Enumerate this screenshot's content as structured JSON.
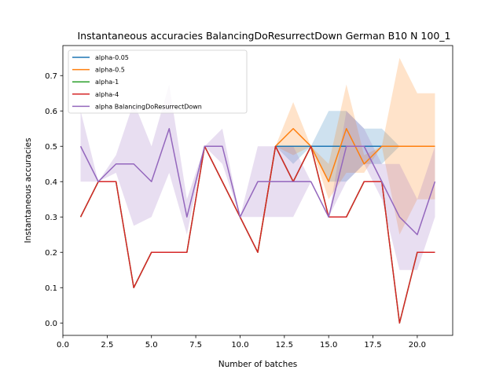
{
  "chart_data": {
    "type": "line",
    "title": "Instantaneous accuracies BalancingDoResurrectDown German B10 N 100_1",
    "xlabel": "Number of batches",
    "ylabel": "Instantaneous accuracies",
    "xlim": [
      0.0,
      22.0
    ],
    "ylim": [
      -0.035,
      0.785
    ],
    "xticks": [
      0.0,
      2.5,
      5.0,
      7.5,
      10.0,
      12.5,
      15.0,
      17.5,
      20.0
    ],
    "xtick_labels": [
      "0.0",
      "2.5",
      "5.0",
      "7.5",
      "10.0",
      "12.5",
      "15.0",
      "17.5",
      "20.0"
    ],
    "yticks": [
      0.0,
      0.1,
      0.2,
      0.3,
      0.4,
      0.5,
      0.6,
      0.7
    ],
    "ytick_labels": [
      "0.0",
      "0.1",
      "0.2",
      "0.3",
      "0.4",
      "0.5",
      "0.6",
      "0.7"
    ],
    "grid": false,
    "legend_position": "top-left",
    "series": [
      {
        "name": "alpha-0.05",
        "color": "#1f77b4",
        "x": [
          12,
          13,
          14,
          15,
          16,
          17,
          18,
          19,
          20,
          21
        ],
        "values": [
          0.5,
          0.5,
          0.5,
          0.5,
          0.5,
          0.5,
          0.5,
          0.5,
          0.5,
          0.5
        ],
        "band_upper": [
          0.5,
          0.5,
          0.5,
          0.6,
          0.6,
          0.55,
          0.55,
          0.5,
          0.5,
          0.5
        ],
        "band_lower": [
          0.5,
          0.45,
          0.5,
          0.4,
          0.4,
          0.45,
          0.45,
          0.5,
          0.5,
          0.5
        ]
      },
      {
        "name": "alpha-0.5",
        "color": "#ff7f0e",
        "x": [
          11,
          12,
          13,
          14,
          15,
          16,
          17,
          18,
          19,
          20,
          21
        ],
        "values": [
          0.2,
          0.5,
          0.55,
          0.5,
          0.4,
          0.55,
          0.45,
          0.5,
          0.5,
          0.5,
          0.5
        ],
        "band_upper": [
          0.2,
          0.5,
          0.625,
          0.5,
          0.45,
          0.675,
          0.475,
          0.5,
          0.75,
          0.65,
          0.65
        ],
        "band_lower": [
          0.2,
          0.5,
          0.475,
          0.5,
          0.35,
          0.425,
          0.425,
          0.5,
          0.25,
          0.35,
          0.35
        ]
      },
      {
        "name": "alpha-1",
        "color": "#2ca02c",
        "x": [
          1,
          2,
          3,
          4,
          5,
          6,
          7,
          8,
          9,
          10,
          11,
          12,
          13,
          14,
          15,
          16,
          17,
          18,
          19,
          20,
          21
        ],
        "values": [
          0.3,
          0.4,
          0.4,
          0.1,
          0.2,
          0.2,
          0.2,
          0.5,
          0.4,
          0.3,
          0.2,
          0.5,
          0.4,
          0.5,
          0.3,
          0.3,
          0.4,
          0.4,
          0.0,
          0.2,
          0.2
        ]
      },
      {
        "name": "alpha-4",
        "color": "#d62728",
        "x": [
          1,
          2,
          3,
          4,
          5,
          6,
          7,
          8,
          9,
          10,
          11,
          12,
          13,
          14,
          15,
          16,
          17,
          18,
          19,
          20,
          21
        ],
        "values": [
          0.3,
          0.4,
          0.4,
          0.1,
          0.2,
          0.2,
          0.2,
          0.5,
          0.4,
          0.3,
          0.2,
          0.5,
          0.4,
          0.5,
          0.3,
          0.3,
          0.4,
          0.4,
          0.0,
          0.2,
          0.2
        ]
      },
      {
        "name": "alpha BalancingDoResurrectDown",
        "color": "#9467bd",
        "x": [
          1,
          2,
          3,
          4,
          5,
          6,
          7,
          8,
          9,
          10,
          11,
          12,
          13,
          14,
          15,
          16,
          17,
          18,
          19,
          20,
          21
        ],
        "values": [
          0.5,
          0.4,
          0.45,
          0.45,
          0.4,
          0.55,
          0.3,
          0.5,
          0.5,
          0.3,
          0.4,
          0.4,
          0.4,
          0.4,
          0.3,
          0.5,
          0.5,
          0.4,
          0.3,
          0.25,
          0.4
        ],
        "band_upper": [
          0.6,
          0.4,
          0.475,
          0.625,
          0.5,
          0.675,
          0.35,
          0.5,
          0.55,
          0.3,
          0.5,
          0.5,
          0.5,
          0.4,
          0.3,
          0.6,
          0.55,
          0.45,
          0.45,
          0.35,
          0.5
        ],
        "band_lower": [
          0.4,
          0.4,
          0.425,
          0.275,
          0.3,
          0.425,
          0.25,
          0.5,
          0.45,
          0.3,
          0.3,
          0.3,
          0.3,
          0.4,
          0.3,
          0.4,
          0.45,
          0.35,
          0.15,
          0.15,
          0.3
        ]
      }
    ]
  }
}
